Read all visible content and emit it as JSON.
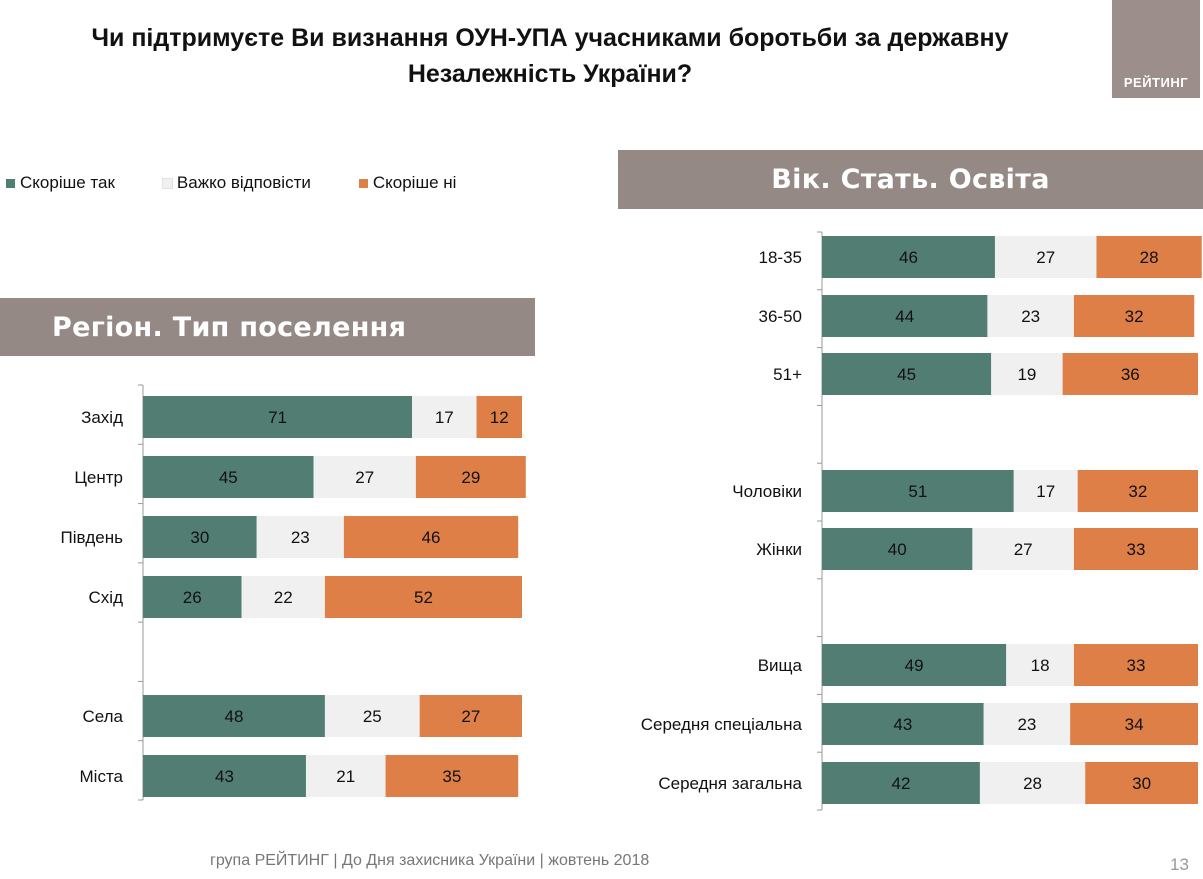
{
  "header": {
    "title_line1": "Чи підтримуєте Ви визнання ОУН-УПА учасниками боротьби за державну",
    "title_line2": "Незалежність України?",
    "logo": "РЕЙТИНГ"
  },
  "legend": [
    {
      "label": "Скоріше так",
      "color": "#527d73"
    },
    {
      "label": "Важко відповісти",
      "color": "#f0f0f0"
    },
    {
      "label": "Скоріше ні",
      "color": "#de7f48"
    }
  ],
  "banners": {
    "left": "Регіон. Тип поселення",
    "right": "Вік. Стать. Освіта"
  },
  "chart_data": [
    {
      "type": "bar",
      "stacked": true,
      "orientation": "horizontal",
      "title": "Регіон. Тип поселення",
      "categories": [
        "Захід",
        "Центр",
        "Південь",
        "Схід",
        "",
        "Села",
        "Міста"
      ],
      "series": [
        {
          "name": "Скоріше так",
          "color": "#527d73",
          "values": [
            71,
            45,
            30,
            26,
            null,
            48,
            43
          ]
        },
        {
          "name": "Важко відповісти",
          "color": "#f0f0f0",
          "values": [
            17,
            27,
            23,
            22,
            null,
            25,
            21
          ]
        },
        {
          "name": "Скоріше ні",
          "color": "#de7f48",
          "values": [
            12,
            29,
            46,
            52,
            null,
            27,
            35
          ]
        }
      ]
    },
    {
      "type": "bar",
      "stacked": true,
      "orientation": "horizontal",
      "title": "Вік. Стать. Освіта",
      "categories": [
        "18-35",
        "36-50",
        "51+",
        "",
        "Чоловіки",
        "Жінки",
        "",
        "Вища",
        "Середня спеціальна",
        "Середня загальна"
      ],
      "series": [
        {
          "name": "Скоріше так",
          "color": "#527d73",
          "values": [
            46,
            44,
            45,
            null,
            51,
            40,
            null,
            49,
            43,
            42
          ]
        },
        {
          "name": "Важко відповісти",
          "color": "#f0f0f0",
          "values": [
            27,
            23,
            19,
            null,
            17,
            27,
            null,
            18,
            23,
            28
          ]
        },
        {
          "name": "Скоріше ні",
          "color": "#de7f48",
          "values": [
            28,
            32,
            36,
            null,
            32,
            33,
            null,
            33,
            34,
            30
          ]
        }
      ]
    }
  ],
  "footer": {
    "text": "група РЕЙТИНГ  |  До Дня захисника України |  жовтень  2018",
    "page": "13"
  }
}
